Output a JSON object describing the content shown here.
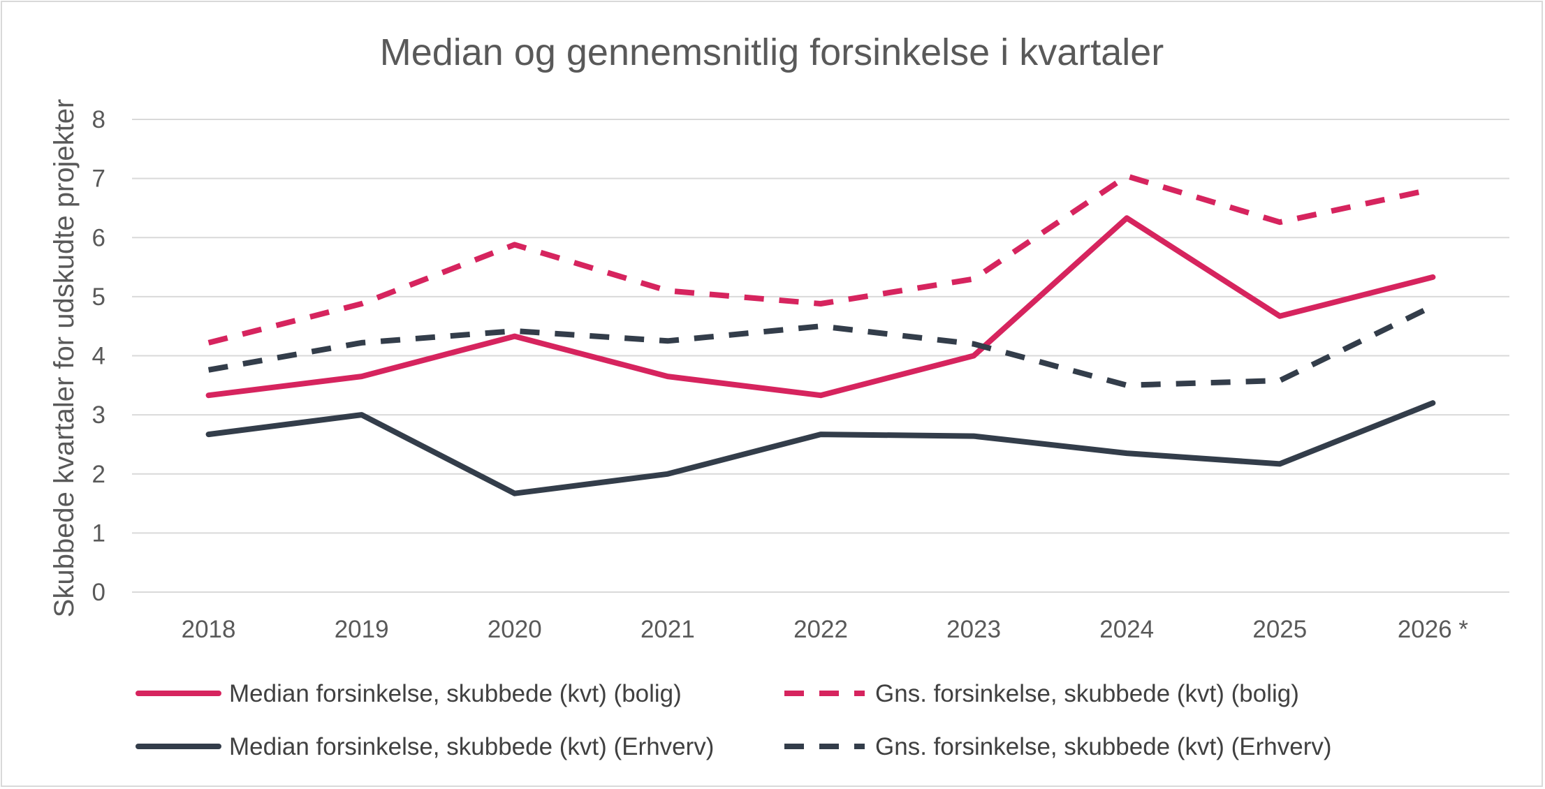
{
  "chart_data": {
    "type": "line",
    "title": "Median og gennemsnitlig forsinkelse i kvartaler",
    "xlabel": "",
    "ylabel": "Skubbede kvartaler for udskudte projekter",
    "categories": [
      "2018",
      "2019",
      "2020",
      "2021",
      "2022",
      "2023",
      "2024",
      "2025",
      "2026 *"
    ],
    "ylim": [
      0,
      8
    ],
    "yticks": [
      "0",
      "1",
      "2",
      "3",
      "4",
      "5",
      "6",
      "7",
      "8"
    ],
    "grid": true,
    "legend_position": "bottom",
    "series": [
      {
        "name": "Median forsinkelse, skubbede (kvt) (bolig)",
        "color": "#d6245e",
        "dash": "solid",
        "values": [
          3.33,
          3.65,
          4.33,
          3.65,
          3.33,
          4.0,
          6.33,
          4.67,
          5.33
        ]
      },
      {
        "name": "Gns. forsinkelse, skubbede (kvt) (bolig)",
        "color": "#d6245e",
        "dash": "dashed",
        "values": [
          4.22,
          4.88,
          5.88,
          5.1,
          4.88,
          5.3,
          7.04,
          6.26,
          6.82
        ]
      },
      {
        "name": "Median forsinkelse, skubbede (kvt) (Erhverv)",
        "color": "#333d4a",
        "dash": "solid",
        "values": [
          2.67,
          3.0,
          1.67,
          2.0,
          2.67,
          2.64,
          2.35,
          2.17,
          3.2
        ]
      },
      {
        "name": "Gns. forsinkelse, skubbede (kvt) (Erhverv)",
        "color": "#333d4a",
        "dash": "dashed",
        "values": [
          3.76,
          4.22,
          4.42,
          4.25,
          4.5,
          4.2,
          3.5,
          3.58,
          4.84
        ]
      }
    ]
  }
}
